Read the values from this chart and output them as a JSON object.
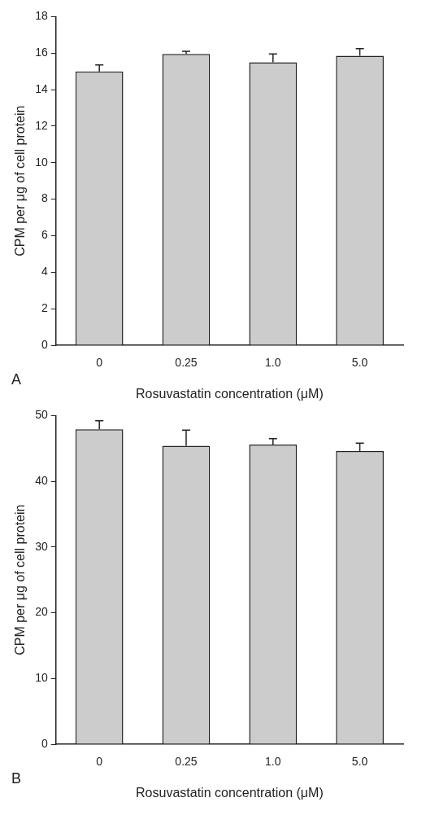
{
  "chart_data": [
    {
      "type": "bar",
      "xlabel": "Rosuvastatin concentration (μM)",
      "ylabel": "CPM per μg of cell protein",
      "categories": [
        "0",
        "0.25",
        "1.0",
        "5.0"
      ],
      "values": [
        15.0,
        15.95,
        15.5,
        15.85
      ],
      "errors": [
        [
          15.0,
          15.35
        ],
        [
          15.95,
          16.1
        ],
        [
          15.5,
          15.95
        ],
        [
          15.85,
          16.25
        ]
      ],
      "color": "#cccccc",
      "ylim": [
        0,
        18
      ],
      "yticks": [
        0,
        2,
        4,
        6,
        8,
        10,
        12,
        14,
        16,
        18
      ],
      "grid": false,
      "annotations": [
        "A"
      ]
    },
    {
      "type": "bar",
      "xlabel": "Rosuvastatin concentration (μM)",
      "ylabel": "CPM per μg of cell protein",
      "categories": [
        "0",
        "0.25",
        "1.0",
        "5.0"
      ],
      "values": [
        47.9,
        45.4,
        45.6,
        44.6
      ],
      "errors": [
        [
          47.9,
          49.2
        ],
        [
          45.4,
          47.8
        ],
        [
          45.6,
          46.5
        ],
        [
          44.6,
          45.8
        ]
      ],
      "color": "#cccccc",
      "ylim": [
        0,
        50
      ],
      "yticks": [
        0,
        10,
        20,
        30,
        40,
        50
      ],
      "grid": false,
      "annotations": [
        "B"
      ]
    }
  ]
}
